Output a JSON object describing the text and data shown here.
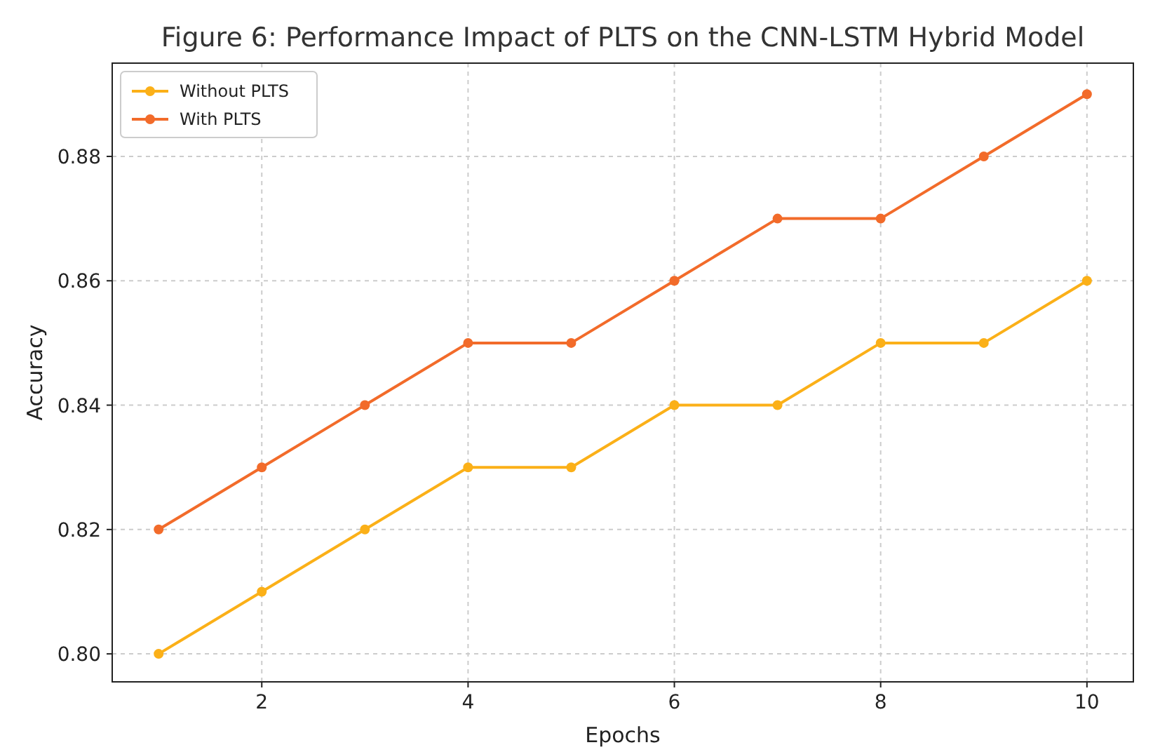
{
  "chart_data": {
    "type": "line",
    "title": "Figure 6: Performance Impact of PLTS on the CNN-LSTM Hybrid Model",
    "xlabel": "Epochs",
    "ylabel": "Accuracy",
    "x": [
      1,
      2,
      3,
      4,
      5,
      6,
      7,
      8,
      9,
      10
    ],
    "series": [
      {
        "name": "Without PLTS",
        "color": "#fbb018",
        "values": [
          0.8,
          0.81,
          0.82,
          0.83,
          0.83,
          0.84,
          0.84,
          0.85,
          0.85,
          0.86
        ]
      },
      {
        "name": "With PLTS",
        "color": "#f26b2a",
        "values": [
          0.82,
          0.83,
          0.84,
          0.85,
          0.85,
          0.86,
          0.87,
          0.87,
          0.88,
          0.89
        ]
      }
    ],
    "xlim": [
      0.55,
      10.45
    ],
    "xticks": [
      2,
      4,
      6,
      8,
      10
    ],
    "ylim": [
      0.7955,
      0.895
    ],
    "yticks": [
      {
        "value": 0.8,
        "label": "0.80"
      },
      {
        "value": 0.82,
        "label": "0.82"
      },
      {
        "value": 0.84,
        "label": "0.84"
      },
      {
        "value": 0.86,
        "label": "0.86"
      },
      {
        "value": 0.88,
        "label": "0.88"
      }
    ],
    "grid": true,
    "legend": "top left",
    "marker": "circle",
    "line_style": "solid"
  }
}
